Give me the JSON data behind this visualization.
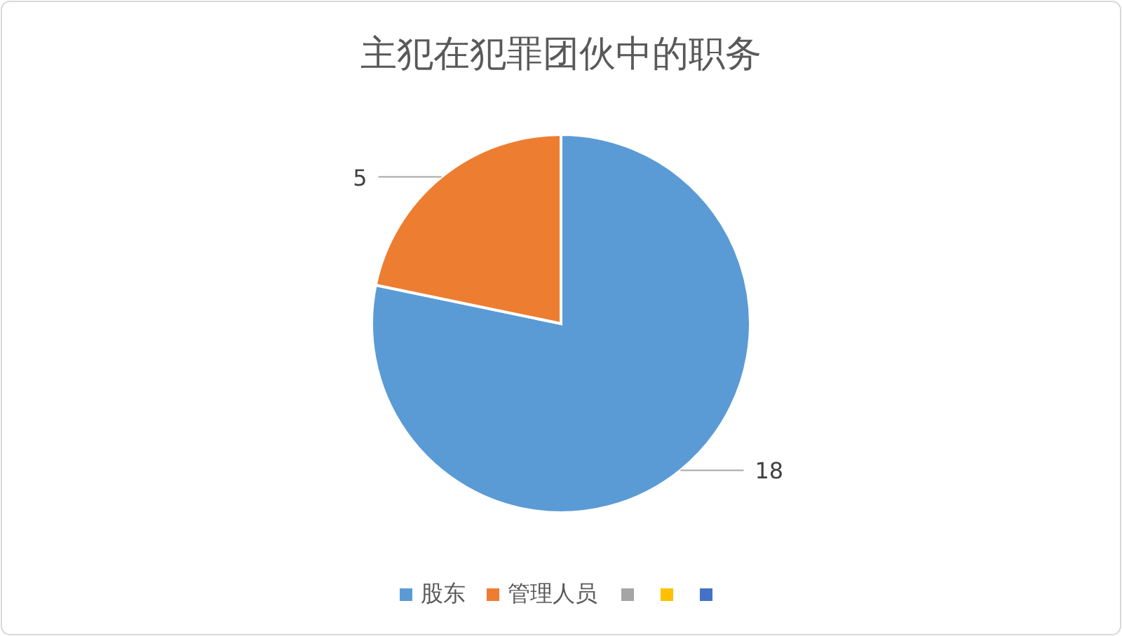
{
  "chart_data": {
    "type": "pie",
    "title": "主犯在犯罪团伙中的职务",
    "categories": [
      "股东",
      "管理人员",
      null,
      null,
      null
    ],
    "values": [
      18,
      5,
      null,
      null,
      null
    ],
    "colors": [
      "#5b9bd5",
      "#ed7d31",
      "#a5a5a5",
      "#ffc000",
      "#4472c4"
    ],
    "data_labels": true,
    "legend": "bottom"
  }
}
